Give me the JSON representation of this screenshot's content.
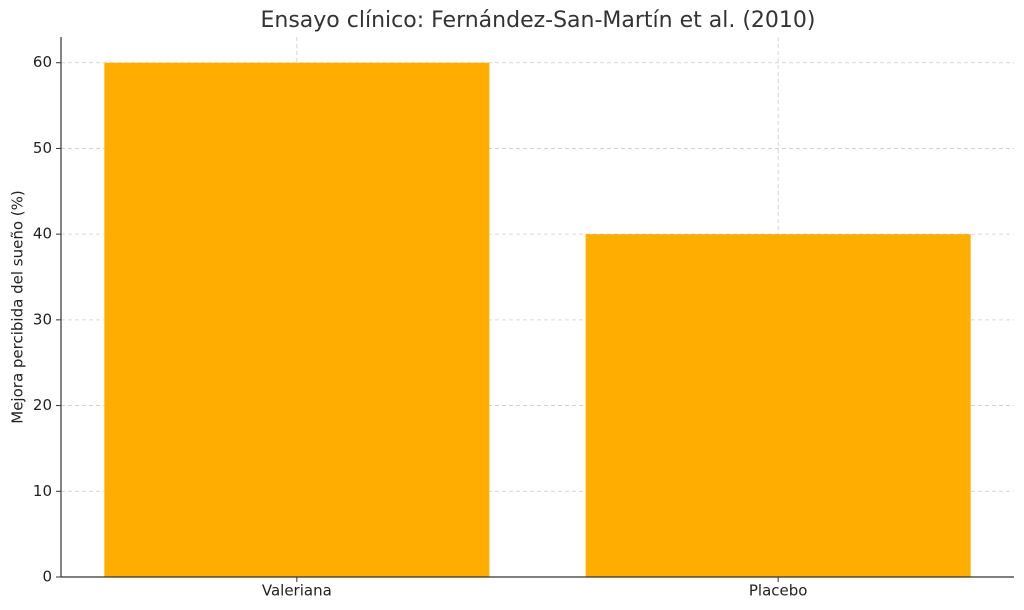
{
  "chart_data": {
    "type": "bar",
    "title": "Ensayo clínico: Fernández-San-Martín et al. (2010)",
    "y_label": "Mejora percibida del sueño (%)",
    "categories": [
      "Valeriana",
      "Placebo"
    ],
    "values": [
      60,
      40
    ],
    "color": "#ffae00",
    "ylim": [
      0,
      63
    ],
    "yticks": [
      0,
      10,
      20,
      30,
      40,
      50,
      60
    ],
    "grid": true
  }
}
